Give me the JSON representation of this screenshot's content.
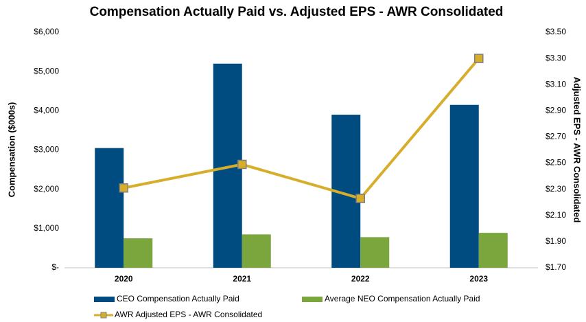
{
  "chart_data": {
    "type": "bar",
    "title": "Compensation Actually Paid vs. Adjusted EPS - AWR Consolidated",
    "ylabel": "Compensation ($000s)",
    "y2label": "Adjusted EPS - AWR Consolidated",
    "categories": [
      "2020",
      "2021",
      "2022",
      "2023"
    ],
    "series": [
      {
        "name": "CEO Compensation Actually Paid",
        "color": "#004b7f",
        "type": "bar",
        "values": [
          3050,
          5200,
          3900,
          4150
        ]
      },
      {
        "name": "Average NEO Compensation Actually Paid",
        "color": "#7aa63d",
        "type": "bar",
        "values": [
          750,
          850,
          780,
          890
        ]
      },
      {
        "name": "AWR Adjusted EPS - AWR Consolidated",
        "color": "#d6ae2c",
        "type": "line",
        "axis": "y2",
        "values": [
          2.31,
          2.49,
          2.23,
          3.3
        ]
      }
    ],
    "ylim": [
      0,
      6000
    ],
    "yticks": [
      {
        "value": 0,
        "label": "$-"
      },
      {
        "value": 1000,
        "label": "$1,000"
      },
      {
        "value": 2000,
        "label": "$2,000"
      },
      {
        "value": 3000,
        "label": "$3,000"
      },
      {
        "value": 4000,
        "label": "$4,000"
      },
      {
        "value": 5000,
        "label": "$5,000"
      },
      {
        "value": 6000,
        "label": "$6,000"
      }
    ],
    "y2lim": [
      1.7,
      3.5
    ],
    "y2ticks": [
      {
        "value": 1.7,
        "label": "$1.70"
      },
      {
        "value": 1.9,
        "label": "$1.90"
      },
      {
        "value": 2.1,
        "label": "$2.10"
      },
      {
        "value": 2.3,
        "label": "$2.30"
      },
      {
        "value": 2.5,
        "label": "$2.50"
      },
      {
        "value": 2.7,
        "label": "$2.70"
      },
      {
        "value": 2.9,
        "label": "$2.90"
      },
      {
        "value": 3.1,
        "label": "$3.10"
      },
      {
        "value": 3.3,
        "label": "$3.30"
      },
      {
        "value": 3.5,
        "label": "$3.50"
      }
    ],
    "grid": false
  }
}
